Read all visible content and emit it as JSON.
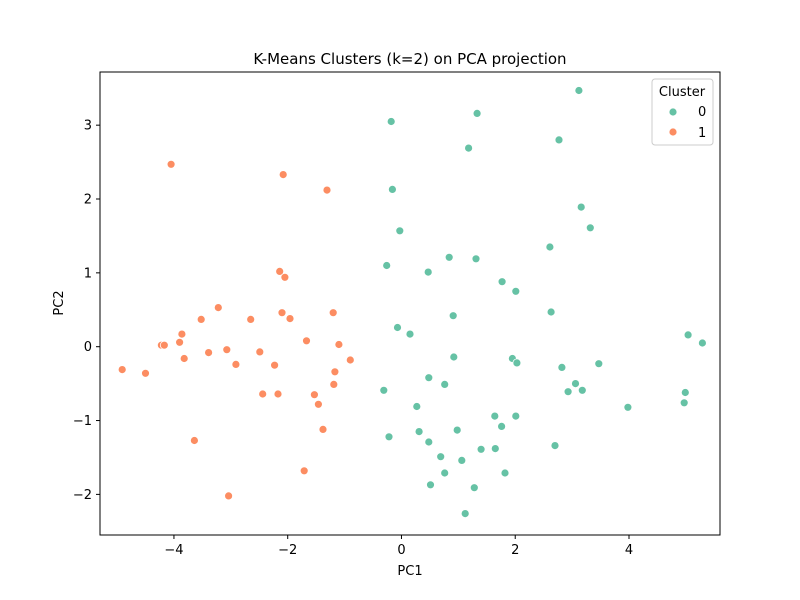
{
  "chart_data": {
    "type": "scatter",
    "title": "K-Means Clusters (k=2) on PCA projection",
    "xlabel": "PC1",
    "ylabel": "PC2",
    "xlim": [
      -5.3,
      5.6
    ],
    "ylim": [
      -2.55,
      3.72
    ],
    "xticks": [
      -4,
      -2,
      0,
      2,
      4
    ],
    "yticks": [
      -2,
      -1,
      0,
      1,
      2,
      3
    ],
    "grid": false,
    "legend": {
      "title": "Cluster",
      "placement": "top-right"
    },
    "series": [
      {
        "name": "0",
        "color": "#66c2a5",
        "points": [
          [
            3.12,
            3.47
          ],
          [
            -0.18,
            3.05
          ],
          [
            1.33,
            3.16
          ],
          [
            2.77,
            2.8
          ],
          [
            1.18,
            2.69
          ],
          [
            -0.16,
            2.13
          ],
          [
            3.16,
            1.89
          ],
          [
            -0.03,
            1.57
          ],
          [
            3.32,
            1.61
          ],
          [
            2.61,
            1.35
          ],
          [
            -0.26,
            1.1
          ],
          [
            0.47,
            1.01
          ],
          [
            0.84,
            1.21
          ],
          [
            1.31,
            1.19
          ],
          [
            1.77,
            0.88
          ],
          [
            2.01,
            0.75
          ],
          [
            2.63,
            0.47
          ],
          [
            0.91,
            0.42
          ],
          [
            -0.07,
            0.26
          ],
          [
            0.15,
            0.17
          ],
          [
            5.04,
            0.16
          ],
          [
            5.29,
            0.05
          ],
          [
            0.92,
            -0.14
          ],
          [
            1.95,
            -0.16
          ],
          [
            2.03,
            -0.22
          ],
          [
            3.47,
            -0.23
          ],
          [
            2.82,
            -0.28
          ],
          [
            0.48,
            -0.42
          ],
          [
            0.76,
            -0.51
          ],
          [
            3.06,
            -0.5
          ],
          [
            -0.31,
            -0.59
          ],
          [
            2.93,
            -0.61
          ],
          [
            3.18,
            -0.59
          ],
          [
            4.99,
            -0.62
          ],
          [
            4.97,
            -0.76
          ],
          [
            0.27,
            -0.81
          ],
          [
            3.98,
            -0.82
          ],
          [
            1.64,
            -0.94
          ],
          [
            2.01,
            -0.94
          ],
          [
            1.76,
            -1.08
          ],
          [
            0.31,
            -1.15
          ],
          [
            0.98,
            -1.13
          ],
          [
            -0.22,
            -1.22
          ],
          [
            0.48,
            -1.29
          ],
          [
            2.7,
            -1.34
          ],
          [
            1.4,
            -1.39
          ],
          [
            1.65,
            -1.38
          ],
          [
            0.69,
            -1.49
          ],
          [
            1.06,
            -1.54
          ],
          [
            0.76,
            -1.71
          ],
          [
            1.82,
            -1.71
          ],
          [
            0.51,
            -1.87
          ],
          [
            1.28,
            -1.91
          ],
          [
            1.12,
            -2.26
          ]
        ]
      },
      {
        "name": "1",
        "color": "#fc8d62",
        "points": [
          [
            -4.05,
            2.47
          ],
          [
            -2.08,
            2.33
          ],
          [
            -1.31,
            2.12
          ],
          [
            -2.14,
            1.02
          ],
          [
            -2.05,
            0.94
          ],
          [
            -3.22,
            0.53
          ],
          [
            -2.1,
            0.46
          ],
          [
            -1.2,
            0.46
          ],
          [
            -3.52,
            0.37
          ],
          [
            -2.65,
            0.37
          ],
          [
            -1.96,
            0.38
          ],
          [
            -3.86,
            0.17
          ],
          [
            -3.9,
            0.06
          ],
          [
            -1.67,
            0.08
          ],
          [
            -4.22,
            0.02
          ],
          [
            -4.17,
            0.02
          ],
          [
            -1.1,
            0.03
          ],
          [
            -3.07,
            -0.04
          ],
          [
            -3.39,
            -0.08
          ],
          [
            -2.49,
            -0.07
          ],
          [
            -3.82,
            -0.16
          ],
          [
            -0.9,
            -0.18
          ],
          [
            -2.91,
            -0.24
          ],
          [
            -2.23,
            -0.25
          ],
          [
            -4.91,
            -0.31
          ],
          [
            -4.5,
            -0.36
          ],
          [
            -1.17,
            -0.34
          ],
          [
            -1.19,
            -0.51
          ],
          [
            -2.44,
            -0.64
          ],
          [
            -2.17,
            -0.64
          ],
          [
            -1.53,
            -0.65
          ],
          [
            -1.46,
            -0.78
          ],
          [
            -1.38,
            -1.12
          ],
          [
            -3.64,
            -1.27
          ],
          [
            -1.71,
            -1.68
          ],
          [
            -3.04,
            -2.02
          ]
        ]
      }
    ]
  }
}
